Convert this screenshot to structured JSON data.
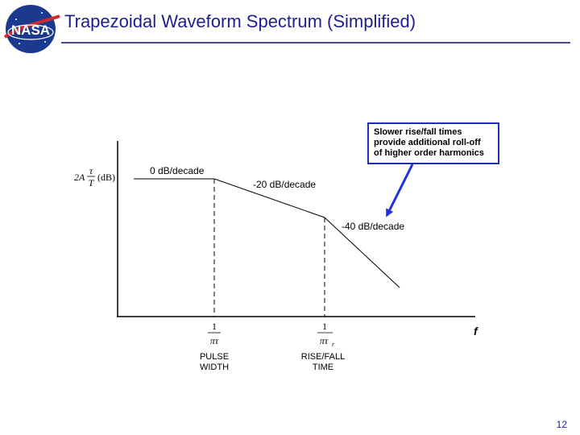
{
  "slide": {
    "title": "Trapezoidal Waveform Spectrum (Simplified)",
    "logo_text": "NASA",
    "page_number": "12"
  },
  "diagram": {
    "y_axis_label": {
      "prefix": "2A",
      "num": "τ",
      "den": "T",
      "unit": "(dB)"
    },
    "x_axis_label": "f",
    "segments": [
      {
        "slope_label": "0 dB/decade"
      },
      {
        "slope_label": "-20 dB/decade"
      },
      {
        "slope_label": "-40 dB/decade"
      }
    ],
    "corners": [
      {
        "num": "1",
        "den": "πτ",
        "caption_lines": [
          "PULSE",
          "WIDTH"
        ]
      },
      {
        "num": "1",
        "den": "πτ",
        "den_sub": "r",
        "caption_lines": [
          "RISE/FALL",
          "TIME"
        ]
      }
    ],
    "callout_lines": [
      "Slower rise/fall times",
      "provide additional roll-off",
      "of higher order harmonics"
    ],
    "colors": {
      "title": "#1f1f8c",
      "callout_border": "#1c2fb3",
      "arrow": "#2233dd"
    }
  }
}
